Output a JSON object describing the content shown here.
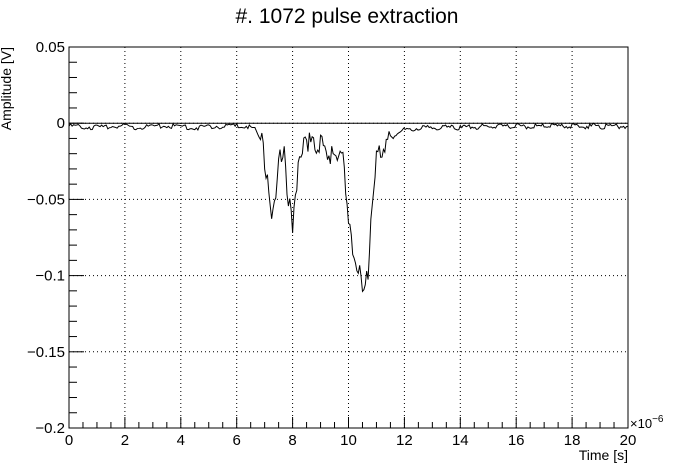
{
  "chart_data": {
    "type": "line",
    "title": "#. 1072 pulse extraction",
    "xlabel": "Time [s]",
    "ylabel": "Amplitude [V]",
    "x_multiplier_label": "×10",
    "x_multiplier_exponent": "−6",
    "xlim": [
      0,
      20
    ],
    "ylim": [
      -0.2,
      0.05
    ],
    "x_ticks": [
      0,
      2,
      4,
      6,
      8,
      10,
      12,
      14,
      16,
      18,
      20
    ],
    "x_tick_labels": [
      "0",
      "2",
      "4",
      "6",
      "8",
      "10",
      "12",
      "14",
      "16",
      "18",
      "20"
    ],
    "y_ticks": [
      -0.2,
      -0.15,
      -0.1,
      -0.05,
      0,
      0.05
    ],
    "y_tick_labels": [
      "−0.2",
      "−0.15",
      "−0.1",
      "−0.05",
      "0",
      "0.05"
    ],
    "grid": true,
    "baseline_value": 0,
    "series": [
      {
        "color": "#000000",
        "x": [
          0,
          0.5,
          1,
          1.5,
          2,
          2.5,
          3,
          3.5,
          4,
          4.5,
          5,
          5.5,
          6,
          6.4,
          6.7,
          6.9,
          7.0,
          7.1,
          7.2,
          7.3,
          7.4,
          7.5,
          7.6,
          7.7,
          7.8,
          7.9,
          8.0,
          8.1,
          8.2,
          8.3,
          8.4,
          8.5,
          8.6,
          8.8,
          9.0,
          9.2,
          9.4,
          9.6,
          9.8,
          10.0,
          10.1,
          10.2,
          10.3,
          10.4,
          10.5,
          10.6,
          10.7,
          10.8,
          10.9,
          11.0,
          11.2,
          11.5,
          11.8,
          12.2,
          12.6,
          13,
          14,
          15,
          16,
          17,
          18,
          19,
          20
        ],
        "y": [
          -0.002,
          -0.002,
          -0.003,
          -0.002,
          -0.002,
          -0.003,
          -0.002,
          -0.002,
          -0.002,
          -0.003,
          -0.002,
          -0.002,
          -0.002,
          -0.002,
          -0.004,
          -0.012,
          -0.025,
          -0.04,
          -0.052,
          -0.06,
          -0.045,
          -0.025,
          -0.02,
          -0.022,
          -0.04,
          -0.055,
          -0.065,
          -0.05,
          -0.03,
          -0.015,
          -0.01,
          -0.01,
          -0.012,
          -0.015,
          -0.015,
          -0.018,
          -0.022,
          -0.02,
          -0.025,
          -0.06,
          -0.08,
          -0.09,
          -0.095,
          -0.1,
          -0.105,
          -0.113,
          -0.095,
          -0.07,
          -0.04,
          -0.025,
          -0.015,
          -0.01,
          -0.005,
          -0.004,
          -0.003,
          -0.003,
          -0.003,
          -0.002,
          -0.002,
          -0.002,
          -0.002,
          -0.002,
          -0.002
        ]
      }
    ]
  }
}
